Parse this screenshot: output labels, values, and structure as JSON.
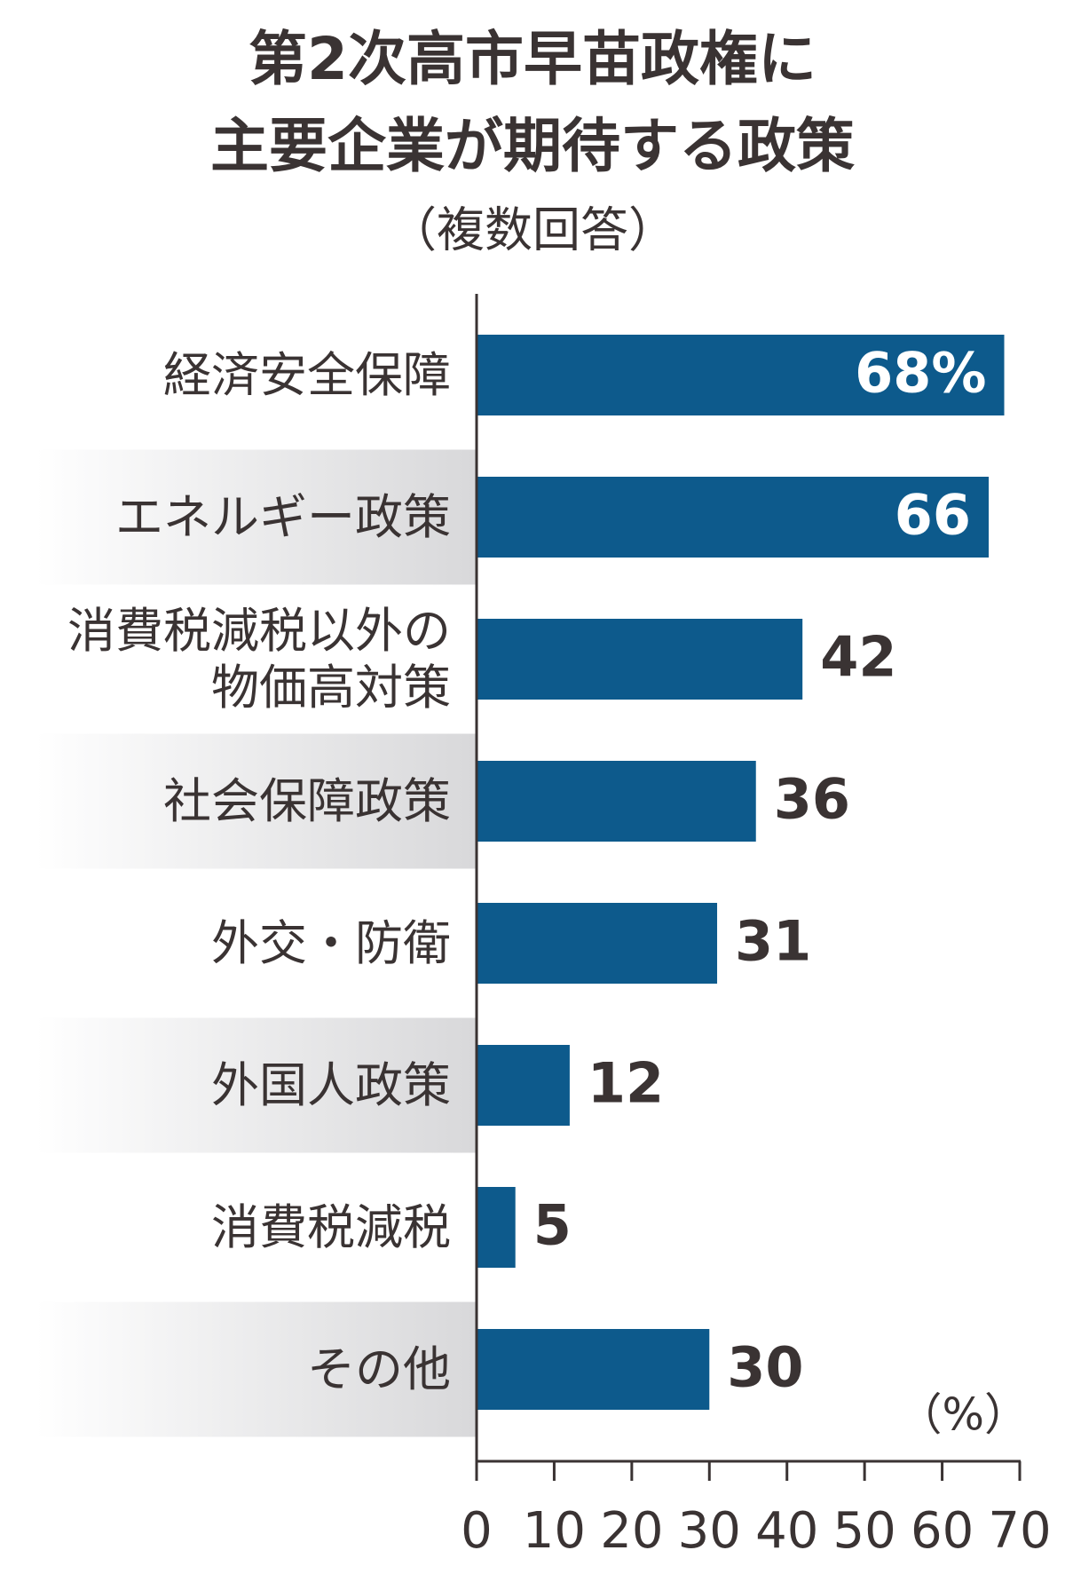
{
  "chart_data": {
    "type": "bar",
    "orientation": "horizontal",
    "title": [
      "第2次高市早苗政権に",
      "主要企業が期待する政策"
    ],
    "subtitle": "（複数回答）",
    "categories": [
      "経済安全保障",
      "エネルギー政策",
      "消費税減税以外の物価高対策",
      "社会保障政策",
      "外交・防衛",
      "外国人政策",
      "消費税減税",
      "その他"
    ],
    "values": [
      68,
      66,
      42,
      36,
      31,
      12,
      5,
      30
    ],
    "value_labels": [
      "68%",
      "66",
      "42",
      "36",
      "31",
      "12",
      "5",
      "30"
    ],
    "unit_label": "（%）",
    "color": "#0d5a8c",
    "xlim": [
      0,
      70
    ],
    "xticks": [
      0,
      10,
      20,
      30,
      40,
      50,
      60,
      70
    ]
  }
}
